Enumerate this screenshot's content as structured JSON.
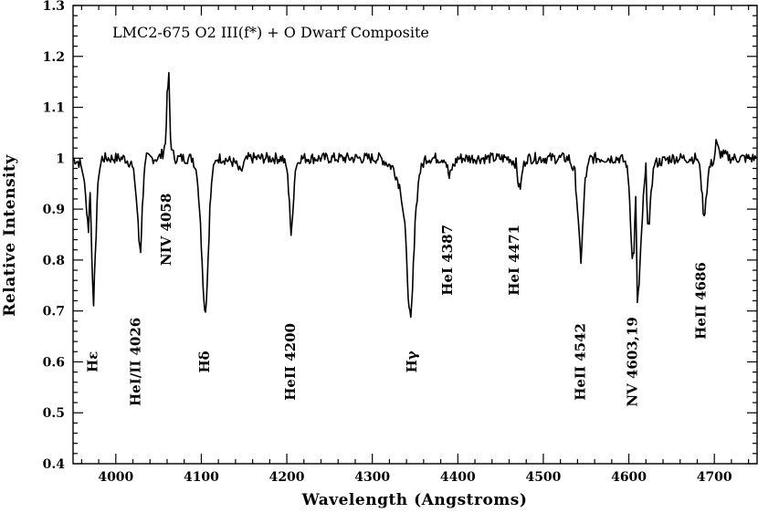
{
  "chart_data": {
    "type": "line",
    "title": "LMC2-675 O2 III(f*) + O Dwarf Composite",
    "xlabel": "Wavelength (Angstroms)",
    "ylabel": "Relative Intensity",
    "xlim": [
      3950,
      4750
    ],
    "ylim": [
      0.4,
      1.3
    ],
    "x_ticks": [
      4000,
      4100,
      4200,
      4300,
      4400,
      4500,
      4600,
      4700
    ],
    "y_ticks": [
      0.4,
      0.5,
      0.6,
      0.7,
      0.8,
      0.9,
      1,
      1.1,
      1.2,
      1.3
    ],
    "y_tick_labels": [
      "0.4",
      "0.5",
      "0.6",
      "0.7",
      "0.8",
      "0.9",
      "1",
      "1.1",
      "1.2",
      "1.3"
    ],
    "grid": false,
    "legend": "none",
    "line_color": "#000000",
    "series": [
      {
        "x": [
          3950,
          3958,
          3962,
          3966,
          3968,
          3970,
          3972,
          3974,
          3976,
          3978,
          3980,
          3984,
          3990,
          4000,
          4010,
          4018,
          4022,
          4025,
          4027,
          4029,
          4031,
          4033,
          4036,
          4040,
          4050,
          4055,
          4058,
          4060,
          4062,
          4064,
          4066,
          4070,
          4080,
          4090,
          4095,
          4098,
          4101,
          4103,
          4105,
          4107,
          4110,
          4113,
          4118,
          4125,
          4140,
          4146,
          4150,
          4155,
          4160,
          4180,
          4195,
          4200,
          4203,
          4205,
          4207,
          4210,
          4215,
          4230,
          4260,
          4290,
          4310,
          4325,
          4333,
          4338,
          4341,
          4343,
          4345,
          4347,
          4350,
          4355,
          4362,
          4375,
          4385,
          4388,
          4390,
          4393,
          4400,
          4430,
          4460,
          4468,
          4470,
          4472,
          4474,
          4476,
          4480,
          4500,
          4520,
          4530,
          4537,
          4540,
          4542,
          4544,
          4546,
          4549,
          4555,
          4570,
          4590,
          4597,
          4600,
          4602,
          4604,
          4606,
          4608,
          4610,
          4612,
          4614,
          4617,
          4620,
          4622,
          4624,
          4626,
          4630,
          4650,
          4670,
          4680,
          4684,
          4686,
          4688,
          4690,
          4694,
          4700,
          4702,
          4706,
          4720,
          4740,
          4750
        ],
        "y": [
          1.0,
          0.99,
          0.97,
          0.9,
          0.86,
          0.94,
          0.8,
          0.72,
          0.8,
          0.91,
          0.97,
          1.0,
          1.0,
          1.0,
          1.0,
          0.99,
          0.96,
          0.9,
          0.84,
          0.82,
          0.9,
          0.97,
          1.0,
          1.0,
          1.0,
          1.01,
          1.03,
          1.12,
          1.16,
          1.04,
          1.01,
          1.0,
          1.0,
          1.0,
          0.97,
          0.9,
          0.8,
          0.72,
          0.7,
          0.76,
          0.9,
          0.97,
          1.0,
          1.0,
          0.99,
          0.97,
          0.99,
          1.0,
          1.0,
          1.0,
          1.0,
          0.98,
          0.92,
          0.84,
          0.9,
          0.98,
          1.0,
          1.0,
          1.0,
          1.0,
          1.0,
          0.98,
          0.94,
          0.87,
          0.77,
          0.7,
          0.68,
          0.74,
          0.88,
          0.97,
          1.0,
          1.0,
          1.0,
          0.98,
          0.96,
          0.98,
          1.0,
          1.0,
          1.0,
          0.99,
          0.96,
          0.94,
          0.95,
          0.98,
          1.0,
          1.0,
          1.0,
          1.0,
          0.97,
          0.9,
          0.84,
          0.8,
          0.86,
          0.96,
          1.0,
          1.0,
          1.0,
          0.99,
          0.95,
          0.88,
          0.8,
          0.82,
          0.92,
          0.72,
          0.75,
          0.82,
          0.92,
          0.98,
          0.88,
          0.86,
          0.94,
          0.99,
          1.0,
          1.0,
          1.0,
          0.97,
          0.92,
          0.88,
          0.92,
          0.98,
          1.0,
          1.03,
          1.01,
          1.0,
          1.0,
          1.0
        ]
      }
    ],
    "annotations": [
      {
        "text": "Hε",
        "x": 3972,
        "y": 0.6
      },
      {
        "text": "HeI/II 4026",
        "x": 4022,
        "y": 0.6
      },
      {
        "text": "NIV 4058",
        "x": 4058,
        "y": 0.86
      },
      {
        "text": "Hδ",
        "x": 4103,
        "y": 0.6
      },
      {
        "text": "HeII 4200",
        "x": 4203,
        "y": 0.6
      },
      {
        "text": "Hγ",
        "x": 4345,
        "y": 0.6
      },
      {
        "text": "HeI 4387",
        "x": 4387,
        "y": 0.8
      },
      {
        "text": "HeI 4471",
        "x": 4465,
        "y": 0.8
      },
      {
        "text": "HeII 4542",
        "x": 4542,
        "y": 0.6
      },
      {
        "text": "NV 4603,19",
        "x": 4603,
        "y": 0.6
      },
      {
        "text": "HeII 4686",
        "x": 4683,
        "y": 0.72
      }
    ]
  }
}
